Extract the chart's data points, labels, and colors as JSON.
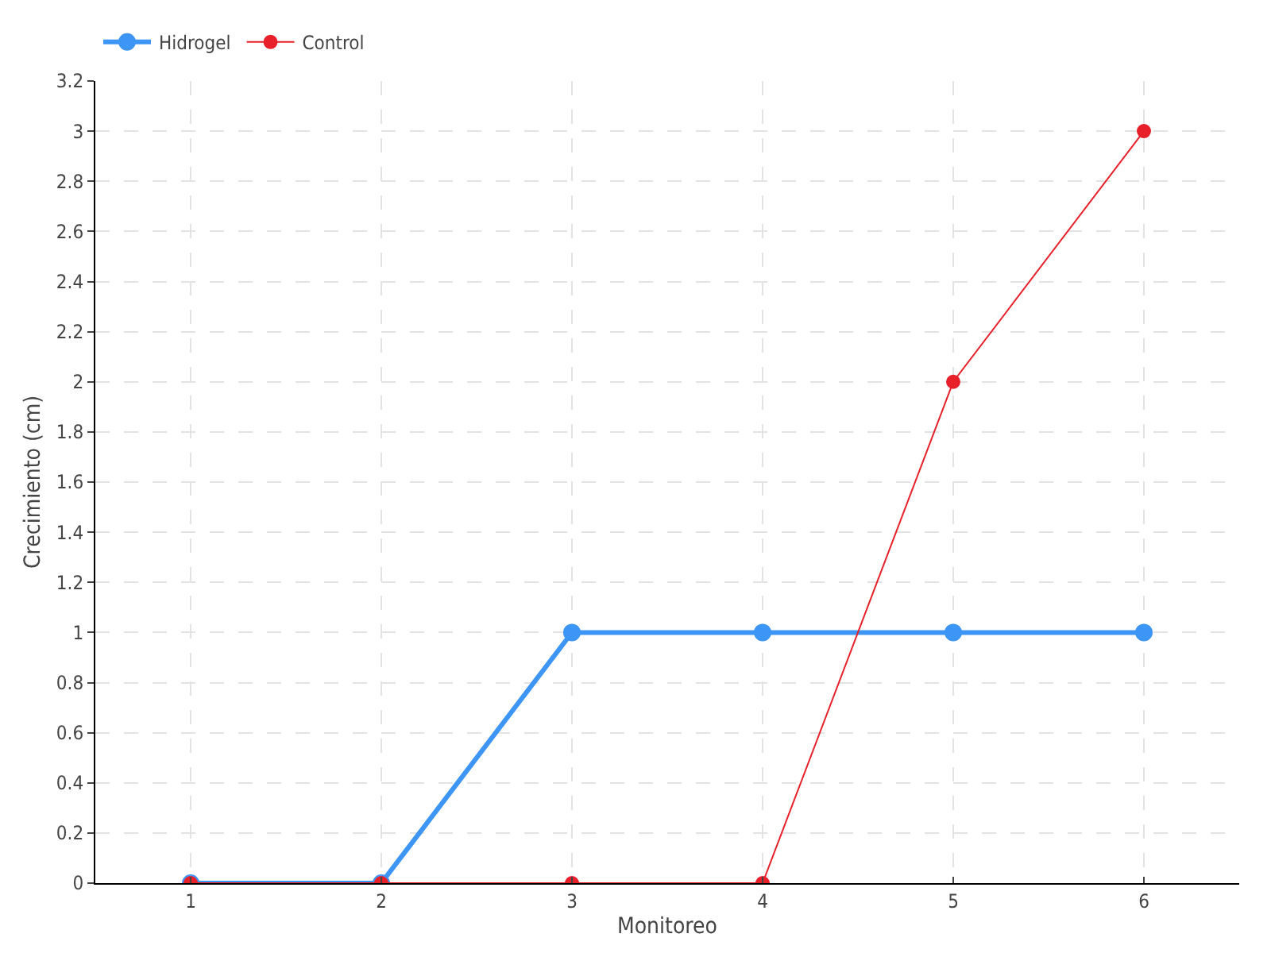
{
  "chart_data": {
    "type": "line",
    "xlabel": "Monitoreo",
    "ylabel": "Crecimiento (cm)",
    "x": [
      1,
      2,
      3,
      4,
      5,
      6
    ],
    "xlim": [
      0.5,
      6.5
    ],
    "xticks": [
      1,
      2,
      3,
      4,
      5,
      6
    ],
    "ylim": [
      0,
      3.2
    ],
    "yticks": [
      0,
      0.2,
      0.4,
      0.6,
      0.8,
      1,
      1.2,
      1.4,
      1.6,
      1.8,
      2,
      2.2,
      2.4,
      2.6,
      2.8,
      3,
      3.2
    ],
    "series": [
      {
        "name": "Hidrogel",
        "color": "#3d95f5",
        "values": [
          0,
          0,
          1,
          1,
          1,
          1
        ]
      },
      {
        "name": "Control",
        "color": "#e8202a",
        "values": [
          0,
          0,
          0,
          0,
          2,
          3
        ]
      }
    ],
    "grid": true,
    "legend": "top left",
    "marker": "circle",
    "line_style": "solid"
  }
}
